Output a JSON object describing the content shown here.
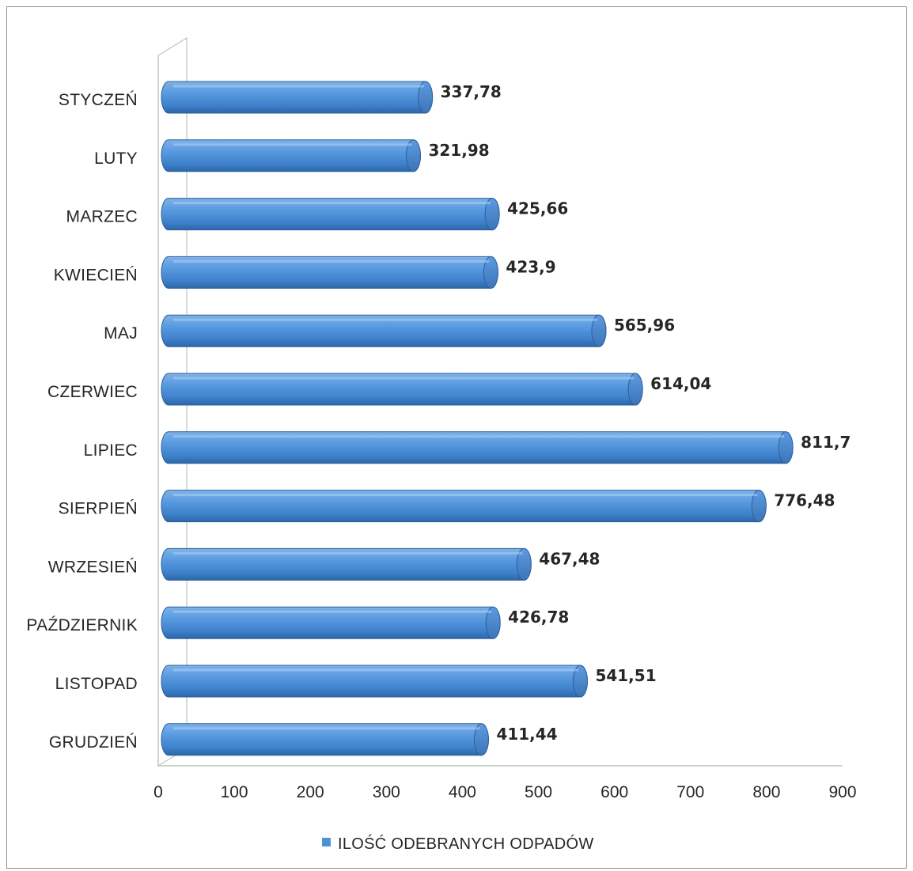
{
  "chart_data": {
    "type": "bar",
    "orientation": "horizontal",
    "style": "3d-cylinder",
    "categories": [
      "STYCZEŃ",
      "LUTY",
      "MARZEC",
      "KWIECIEŃ",
      "MAJ",
      "CZERWIEC",
      "LIPIEC",
      "SIERPIEŃ",
      "WRZESIEŃ",
      "PAŹDZIERNIK",
      "LISTOPAD",
      "GRUDZIEŃ"
    ],
    "series": [
      {
        "name": "ILOŚĆ ODEBRANYCH ODPADÓW",
        "values": [
          337.78,
          321.98,
          425.66,
          423.9,
          565.96,
          614.04,
          811.7,
          776.48,
          467.48,
          426.78,
          541.51,
          411.44
        ],
        "value_labels": [
          "337,78",
          "321,98",
          "425,66",
          "423,9",
          "565,96",
          "614,04",
          "811,7",
          "776,48",
          "467,48",
          "426,78",
          "541,51",
          "411,44"
        ],
        "color": "#4f91d6"
      }
    ],
    "xlim": [
      0,
      900
    ],
    "xticks": [
      "0",
      "100",
      "200",
      "300",
      "400",
      "500",
      "600",
      "700",
      "800",
      "900"
    ],
    "grid": false,
    "legend_position": "bottom",
    "title": "",
    "xlabel": "",
    "ylabel": ""
  }
}
